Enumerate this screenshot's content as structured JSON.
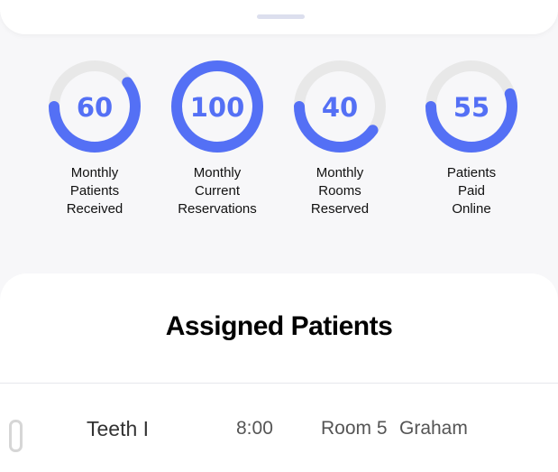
{
  "colors": {
    "accent": "#5470f5",
    "track": "#e8e8e8"
  },
  "stats": [
    {
      "value": 60,
      "percent": 60,
      "label": "Monthly\nPatients\nReceived"
    },
    {
      "value": 100,
      "percent": 100,
      "label": "Monthly\nCurrent\nReservations"
    },
    {
      "value": 40,
      "percent": 40,
      "label": "Monthly\nRooms\nReserved"
    },
    {
      "value": 55,
      "percent": 55,
      "label": "Patients\nPaid\nOnline"
    }
  ],
  "assigned": {
    "title": "Assigned Patients",
    "rows": [
      {
        "procedure": "Teeth I",
        "time": "8:00",
        "room": "Room 5",
        "doctor": "Graham"
      }
    ]
  }
}
